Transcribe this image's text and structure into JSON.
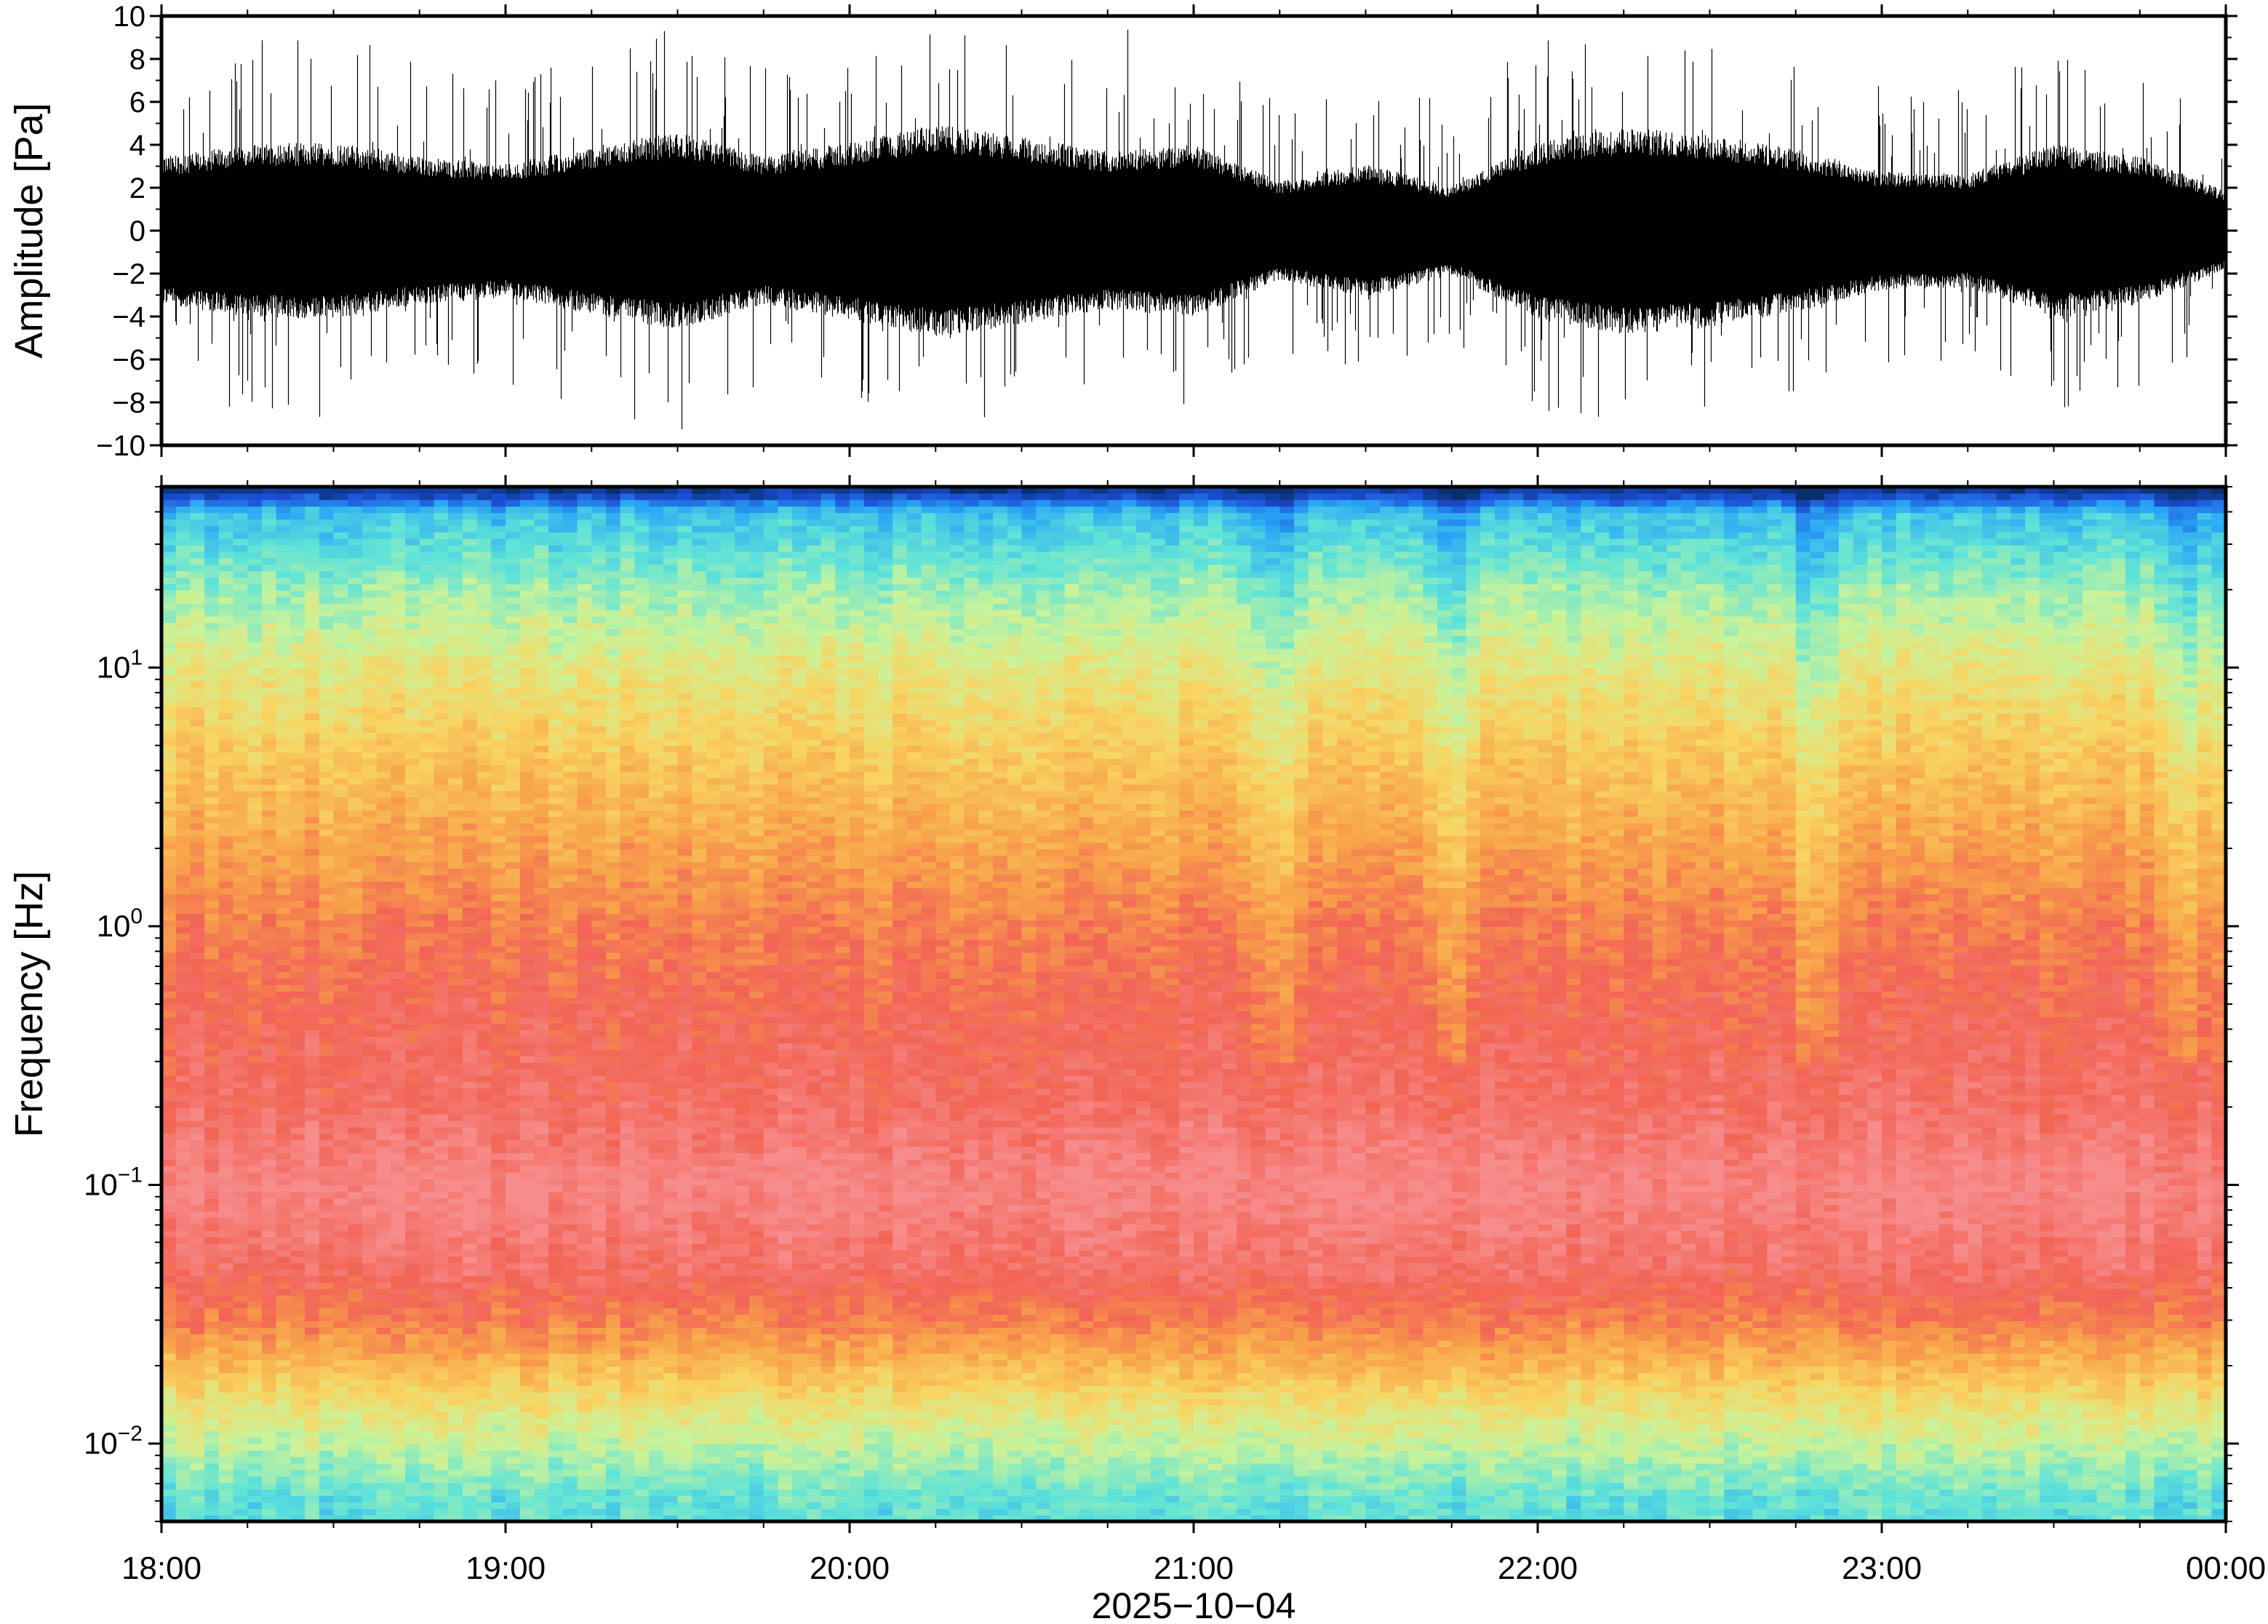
{
  "chart_data": [
    {
      "type": "line",
      "panel": "waveform",
      "ylabel": "Amplitude [Pa]",
      "ylim": [
        -10,
        10
      ],
      "yticks": [
        10,
        8,
        6,
        4,
        2,
        0,
        -2,
        -4,
        -6,
        -8,
        -10
      ],
      "ytick_labels": [
        "10",
        "8",
        "6",
        "4",
        "2",
        "0",
        "−2",
        "−4",
        "−6",
        "−8",
        "−10"
      ],
      "x_hours": [
        18,
        24
      ],
      "series": [
        {
          "color": "#000000",
          "envelope_hours": [
            18.0,
            18.25,
            18.5,
            18.75,
            19.0,
            19.25,
            19.5,
            19.75,
            20.0,
            20.25,
            20.5,
            20.75,
            21.0,
            21.25,
            21.5,
            21.75,
            22.0,
            22.25,
            22.5,
            22.75,
            23.0,
            23.25,
            23.5,
            23.75,
            24.0
          ],
          "envelope_pa": [
            3.0,
            3.5,
            3.6,
            3.0,
            2.7,
            3.4,
            4.0,
            3.0,
            3.6,
            4.3,
            3.8,
            3.2,
            3.5,
            2.0,
            2.7,
            1.8,
            3.6,
            4.2,
            3.9,
            3.3,
            2.4,
            2.3,
            3.5,
            3.0,
            1.6
          ],
          "peak_pa": [
            8,
            9,
            9.5,
            8,
            8,
            9,
            10,
            8,
            9,
            10,
            9.5,
            10,
            9,
            6,
            7,
            6,
            9,
            10,
            9,
            8,
            7,
            7,
            9,
            8,
            5
          ]
        }
      ]
    },
    {
      "type": "heatmap",
      "panel": "spectrogram",
      "ylabel": "Frequency [Hz]",
      "yscale": "log",
      "ylim_hz": [
        0.005,
        50
      ],
      "yticks_hz": [
        0.01,
        0.1,
        1,
        10
      ],
      "ytick_base": "10",
      "ytick_exponents": [
        "−2",
        "−1",
        "0",
        "1"
      ],
      "xticks": [
        "18:00",
        "19:00",
        "20:00",
        "21:00",
        "22:00",
        "23:00",
        "00:00"
      ],
      "xlabel": "2025−10−04",
      "x_hours": [
        18,
        24
      ],
      "colormap": [
        "#08306b",
        "#1d4fd8",
        "#2aa8f5",
        "#5fe3d8",
        "#c9f39a",
        "#f8d563",
        "#f8a44a",
        "#f26455",
        "#f78c8c"
      ],
      "description_levels": {
        "freq_hz": [
          0.006,
          0.01,
          0.015,
          0.02,
          0.03,
          0.05,
          0.1,
          0.2,
          0.5,
          1,
          2,
          5,
          10,
          20,
          40,
          48
        ],
        "level": [
          3.0,
          4.0,
          4.8,
          5.6,
          6.6,
          7.4,
          7.9,
          7.3,
          7.0,
          6.6,
          6.0,
          5.2,
          4.5,
          3.6,
          2.4,
          0.4
        ]
      },
      "quiet_times_hours": [
        21.25,
        21.75,
        22.8,
        23.9
      ]
    }
  ]
}
